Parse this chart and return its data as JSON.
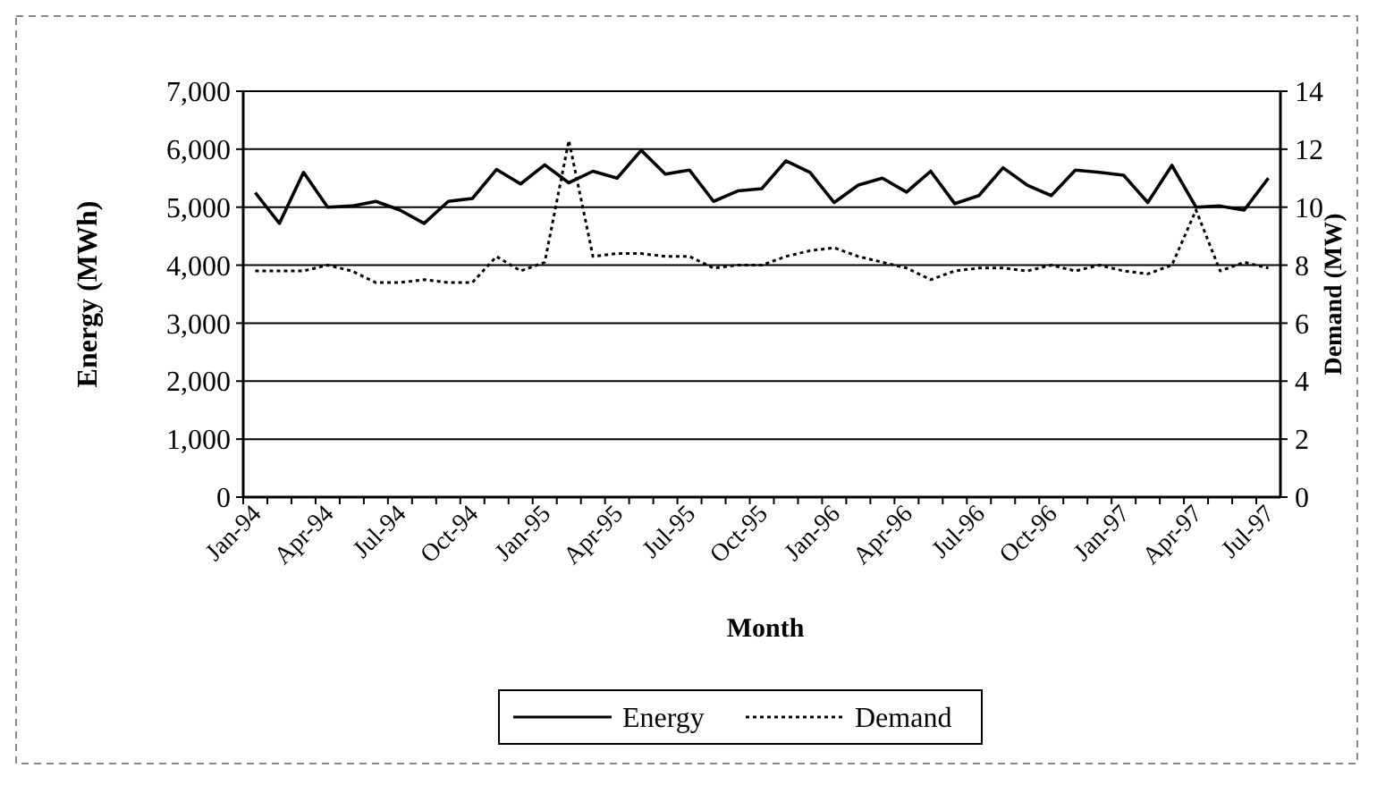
{
  "chart_data": {
    "type": "line",
    "xlabel": "Month",
    "ylabel": "Energy (MWh)",
    "y2label": "Demand (MW)",
    "categories": [
      "Jan-94",
      null,
      null,
      "Apr-94",
      null,
      null,
      "Jul-94",
      null,
      null,
      "Oct-94",
      null,
      null,
      "Jan-95",
      null,
      null,
      "Apr-95",
      null,
      null,
      "Jul-95",
      null,
      null,
      "Oct-95",
      null,
      null,
      "Jan-96",
      null,
      null,
      "Apr-96",
      null,
      null,
      "Jul-96",
      null,
      null,
      "Oct-96",
      null,
      null,
      "Jan-97",
      null,
      null,
      "Apr-97",
      null,
      null,
      "Jul-97"
    ],
    "series": [
      {
        "name": "Energy",
        "color": "#000000",
        "line_style": "solid",
        "values": [
          5250,
          4720,
          5600,
          5000,
          5020,
          5100,
          4950,
          4720,
          5100,
          5150,
          5650,
          5400,
          5730,
          5420,
          5620,
          5500,
          5980,
          5570,
          5640,
          5100,
          5280,
          5320,
          5800,
          5600,
          5080,
          5380,
          5500,
          5260,
          5620,
          5060,
          5200,
          5680,
          5380,
          5200,
          5640,
          5600,
          5550,
          5080,
          5720,
          5000,
          5020,
          4950,
          5500
        ]
      },
      {
        "name": "Demand",
        "color": "#000000",
        "line_style": "dotted",
        "axis": "y2",
        "values": [
          7.8,
          7.8,
          7.8,
          8.0,
          7.8,
          7.4,
          7.4,
          7.5,
          7.4,
          7.4,
          8.3,
          7.8,
          8.1,
          12.3,
          8.3,
          8.4,
          8.4,
          8.3,
          8.3,
          7.9,
          8.0,
          8.0,
          8.3,
          8.5,
          8.6,
          8.3,
          8.1,
          7.9,
          7.5,
          7.8,
          7.9,
          7.9,
          7.8,
          8.0,
          7.8,
          8.0,
          7.8,
          7.7,
          8.0,
          9.9,
          7.8,
          8.1,
          7.9
        ]
      }
    ],
    "ylim": [
      0,
      7000
    ],
    "yticks": [
      {
        "value": 0,
        "label": "0"
      },
      {
        "value": 1000,
        "label": "1,000"
      },
      {
        "value": 2000,
        "label": "2,000"
      },
      {
        "value": 3000,
        "label": "3,000"
      },
      {
        "value": 4000,
        "label": "4,000"
      },
      {
        "value": 5000,
        "label": "5,000"
      },
      {
        "value": 6000,
        "label": "6,000"
      },
      {
        "value": 7000,
        "label": "7,000"
      }
    ],
    "y2lim": [
      0,
      14
    ],
    "y2ticks": [
      0,
      2,
      4,
      6,
      8,
      10,
      12,
      14
    ],
    "grid": "y",
    "legend": "bottom",
    "marker": "none"
  }
}
